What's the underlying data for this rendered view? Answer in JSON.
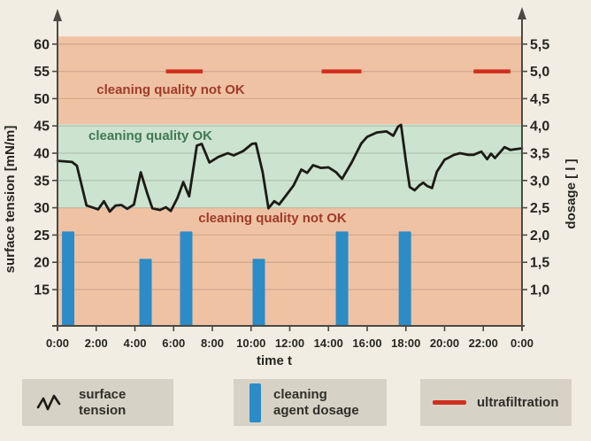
{
  "page": {
    "background": "#f1ede3"
  },
  "chart_data": {
    "type": "line",
    "x_axis": {
      "label": "time t",
      "tick_labels": [
        "0:00",
        "2:00",
        "4:00",
        "6:00",
        "8:00",
        "10:00",
        "12:00",
        "14:00",
        "16:00",
        "18:00",
        "20:00",
        "22:00",
        "0:00"
      ],
      "hours_range": [
        0,
        24
      ],
      "tick_step_hours": 2
    },
    "y_left_axis": {
      "label": "surface tension [mN/m]",
      "ticks": [
        60,
        55,
        50,
        45,
        40,
        35,
        30,
        25,
        20,
        15
      ]
    },
    "y_right_axis": {
      "label": "dosage [ l ]",
      "tick_labels": [
        "5,5",
        "5,0",
        "4,5",
        "4,0",
        "3,5",
        "3,0",
        "2,5",
        "2,0",
        "1,5",
        "1,0"
      ]
    },
    "zones": [
      {
        "id": "not-ok-top",
        "label": "cleaning quality not OK",
        "axis_range": [
          45.3,
          61.4
        ],
        "color": "#f0c2a4",
        "label_color": "#9e3b2b"
      },
      {
        "id": "ok",
        "label": "cleaning quality OK",
        "axis_range": [
          30.0,
          45.3
        ],
        "color": "#cbe3cf",
        "label_color": "#417952"
      },
      {
        "id": "not-ok-bottom",
        "label": "cleaning quality not OK",
        "axis_range": [
          8.3,
          30.0
        ],
        "color": "#f0c2a4",
        "label_color": "#9e3b2b"
      }
    ],
    "series": [
      {
        "name": "surface tension",
        "kind": "line",
        "unit": "mN/m",
        "color": "#1b1b15",
        "points_t_v": [
          [
            0,
            38.6
          ],
          [
            0.75,
            38.4
          ],
          [
            1.0,
            37.7
          ],
          [
            1.5,
            30.4
          ],
          [
            1.85,
            30.0
          ],
          [
            2.1,
            29.7
          ],
          [
            2.4,
            31.2
          ],
          [
            2.7,
            29.3
          ],
          [
            3.0,
            30.4
          ],
          [
            3.3,
            30.5
          ],
          [
            3.6,
            29.8
          ],
          [
            3.95,
            30.6
          ],
          [
            4.3,
            36.5
          ],
          [
            4.65,
            32.5
          ],
          [
            4.9,
            29.9
          ],
          [
            5.3,
            29.6
          ],
          [
            5.6,
            30.1
          ],
          [
            5.85,
            29.4
          ],
          [
            6.2,
            31.8
          ],
          [
            6.5,
            34.7
          ],
          [
            6.8,
            32.1
          ],
          [
            7.2,
            41.4
          ],
          [
            7.45,
            41.7
          ],
          [
            7.85,
            38.3
          ],
          [
            8.3,
            39.3
          ],
          [
            8.8,
            40.0
          ],
          [
            9.1,
            39.6
          ],
          [
            9.6,
            40.4
          ],
          [
            10.05,
            41.7
          ],
          [
            10.25,
            41.8
          ],
          [
            10.6,
            36.5
          ],
          [
            10.9,
            29.9
          ],
          [
            11.2,
            31.2
          ],
          [
            11.45,
            30.6
          ],
          [
            11.8,
            32.2
          ],
          [
            12.2,
            34.1
          ],
          [
            12.6,
            37.0
          ],
          [
            12.9,
            36.4
          ],
          [
            13.2,
            37.8
          ],
          [
            13.6,
            37.3
          ],
          [
            14.0,
            37.4
          ],
          [
            14.4,
            36.5
          ],
          [
            14.7,
            35.3
          ],
          [
            15.2,
            38.3
          ],
          [
            15.7,
            41.8
          ],
          [
            16.0,
            43.0
          ],
          [
            16.5,
            43.8
          ],
          [
            17.0,
            44.0
          ],
          [
            17.35,
            43.2
          ],
          [
            17.6,
            44.9
          ],
          [
            17.75,
            45.2
          ],
          [
            18.0,
            38.5
          ],
          [
            18.2,
            33.8
          ],
          [
            18.45,
            33.2
          ],
          [
            18.7,
            34.1
          ],
          [
            18.9,
            34.6
          ],
          [
            19.1,
            34.0
          ],
          [
            19.35,
            33.6
          ],
          [
            19.6,
            36.6
          ],
          [
            20.0,
            38.8
          ],
          [
            20.5,
            39.7
          ],
          [
            20.8,
            40.0
          ],
          [
            21.2,
            39.7
          ],
          [
            21.5,
            39.7
          ],
          [
            21.9,
            40.3
          ],
          [
            22.2,
            38.9
          ],
          [
            22.4,
            39.9
          ],
          [
            22.6,
            39.1
          ],
          [
            23.1,
            41.1
          ],
          [
            23.4,
            40.6
          ],
          [
            24.0,
            40.9
          ]
        ]
      },
      {
        "name": "cleaning agent dosage",
        "kind": "bar",
        "unit": "l",
        "color": "#2b8cc7",
        "bars": [
          {
            "t_hours": 0.55,
            "dosage_l": 2.0
          },
          {
            "t_hours": 4.55,
            "dosage_l": 1.5
          },
          {
            "t_hours": 6.65,
            "dosage_l": 2.0
          },
          {
            "t_hours": 10.4,
            "dosage_l": 1.5
          },
          {
            "t_hours": 14.7,
            "dosage_l": 2.0
          },
          {
            "t_hours": 17.95,
            "dosage_l": 2.0
          }
        ]
      },
      {
        "name": "ultrafiltration",
        "kind": "horizontal-segments",
        "color": "#cf2f20",
        "dosage_level_l": 5.0,
        "segments_t_hours": [
          [
            5.6,
            7.5
          ],
          [
            13.65,
            15.7
          ],
          [
            21.5,
            23.4
          ]
        ]
      }
    ]
  },
  "legend": {
    "background": "#d7d2c6",
    "items": [
      {
        "label": "surface tension",
        "icon": "zigzag-line-icon"
      },
      {
        "label": "cleaning agent dosage",
        "icon": "blue-bar-icon"
      },
      {
        "label": "ultrafiltration",
        "icon": "red-line-icon"
      }
    ]
  }
}
